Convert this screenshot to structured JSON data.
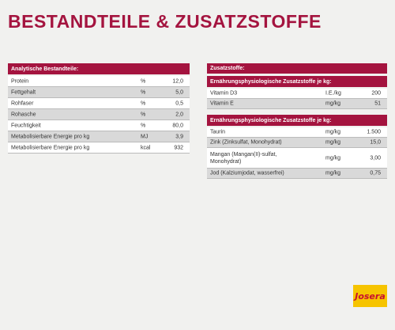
{
  "header": {
    "title": "BESTANDTEILE & ZUSATZSTOFFE"
  },
  "left_table": {
    "title": "Analytische Bestandteile:",
    "rows": [
      [
        "Protein",
        "%",
        "12,0"
      ],
      [
        "Fettgehalt",
        "%",
        "5,0"
      ],
      [
        "Rohfaser",
        "%",
        "0,5"
      ],
      [
        "Rohasche",
        "%",
        "2,0"
      ],
      [
        "Feuchtigkeit",
        "%",
        "80,0"
      ],
      [
        "Metabolisierbare Energie pro kg",
        "MJ",
        "3,9"
      ],
      [
        "Metabolisierbare Energie pro kg",
        "kcal",
        "932"
      ]
    ]
  },
  "right_table": {
    "title": "Zusatzstoffe:",
    "sections": [
      {
        "title": "Ernährungsphysiologische Zusatzstoffe je kg:",
        "rows": [
          [
            "Vitamin D3",
            "I.E./kg",
            "200"
          ],
          [
            "Vitamin E",
            "mg/kg",
            "51"
          ]
        ]
      },
      {
        "title": "Ernährungsphysiologische Zusatzstoffe je kg:",
        "rows": [
          [
            "Taurin",
            "mg/kg",
            "1.500"
          ],
          [
            "Zink (Zinksulfat, Monohydrat)",
            "mg/kg",
            "15,0"
          ],
          [
            "Mangan (Mangan(II)-sulfat,\nMonohydrat)",
            "mg/kg",
            "3,00"
          ],
          [
            "Jod (Kalziumjodat, wasserfrei)",
            "mg/kg",
            "0,75"
          ]
        ]
      }
    ]
  },
  "logo": {
    "text": "Josera"
  }
}
